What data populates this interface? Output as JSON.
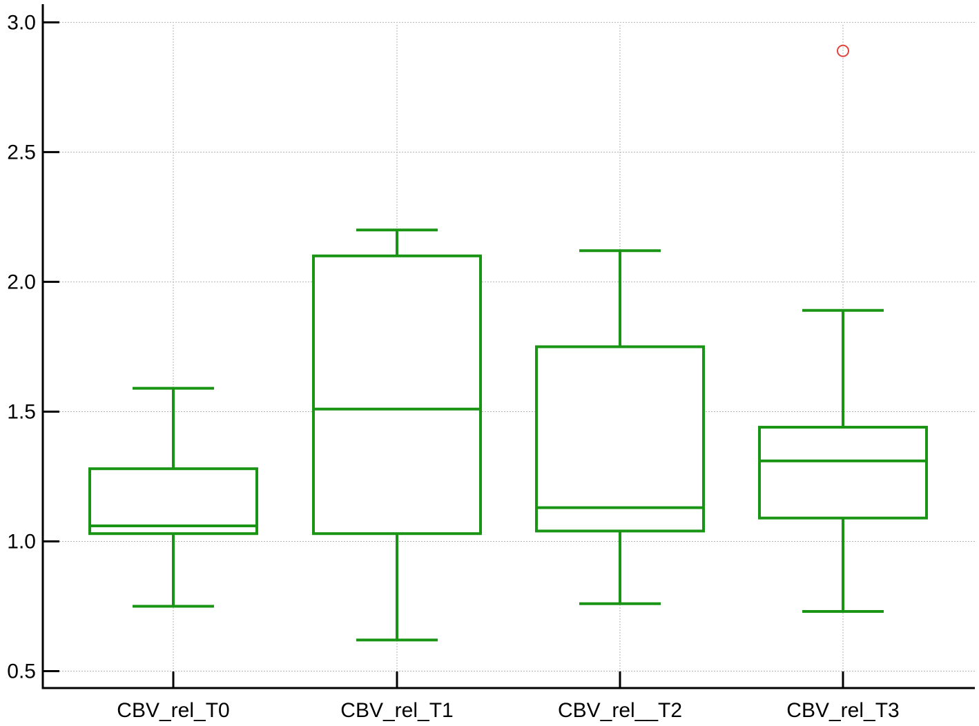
{
  "chart_data": {
    "type": "box",
    "categories": [
      "CBV_rel_T0",
      "CBV_rel_T1",
      "CBV_rel__T2",
      "CBV_rel_T3"
    ],
    "boxes": [
      {
        "category": "CBV_rel_T0",
        "whisker_low": 0.75,
        "q1": 1.03,
        "median": 1.06,
        "q3": 1.28,
        "whisker_high": 1.59,
        "outliers": []
      },
      {
        "category": "CBV_rel_T1",
        "whisker_low": 0.62,
        "q1": 1.03,
        "median": 1.51,
        "q3": 2.1,
        "whisker_high": 2.2,
        "outliers": []
      },
      {
        "category": "CBV_rel__T2",
        "whisker_low": 0.76,
        "q1": 1.04,
        "median": 1.13,
        "q3": 1.75,
        "whisker_high": 2.12,
        "outliers": []
      },
      {
        "category": "CBV_rel_T3",
        "whisker_low": 0.73,
        "q1": 1.09,
        "median": 1.31,
        "q3": 1.44,
        "whisker_high": 1.89,
        "outliers": [
          2.89
        ]
      }
    ],
    "yticks": [
      "0.5",
      "1.0",
      "1.5",
      "2.0",
      "2.5",
      "3.0"
    ],
    "ylim": [
      0.435,
      3.07
    ],
    "grid": true,
    "colors": {
      "box": "#1a9414",
      "outlier": "#e0443c",
      "grid": "#b0b0b0",
      "axis": "#000000"
    }
  }
}
